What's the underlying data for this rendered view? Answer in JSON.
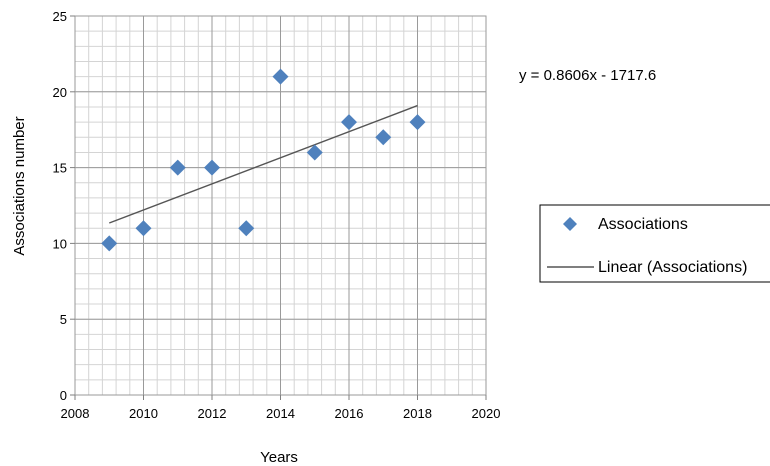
{
  "chart_data": {
    "type": "scatter",
    "xlabel": "Years",
    "ylabel": "Associations number",
    "xlim": [
      2008,
      2020
    ],
    "ylim": [
      0,
      25
    ],
    "x_ticks": [
      2008,
      2010,
      2012,
      2014,
      2016,
      2018,
      2020
    ],
    "y_ticks": [
      0,
      5,
      10,
      15,
      20,
      25
    ],
    "grid": true,
    "series": [
      {
        "name": "Associations",
        "marker": "diamond",
        "color": "#4f81bd",
        "points": [
          {
            "x": 2009,
            "y": 10
          },
          {
            "x": 2010,
            "y": 11
          },
          {
            "x": 2011,
            "y": 15
          },
          {
            "x": 2012,
            "y": 15
          },
          {
            "x": 2013,
            "y": 11
          },
          {
            "x": 2014,
            "y": 21
          },
          {
            "x": 2015,
            "y": 16
          },
          {
            "x": 2016,
            "y": 18
          },
          {
            "x": 2017,
            "y": 17
          },
          {
            "x": 2018,
            "y": 18
          }
        ]
      }
    ],
    "trendline": {
      "name": "Linear (Associations)",
      "type": "linear",
      "slope": 0.8606,
      "intercept": -1717.6,
      "x_range": [
        2009,
        2018
      ],
      "color": "#555555",
      "equation": "y = 0.8606x - 1717.6"
    },
    "legend_position": "right"
  }
}
